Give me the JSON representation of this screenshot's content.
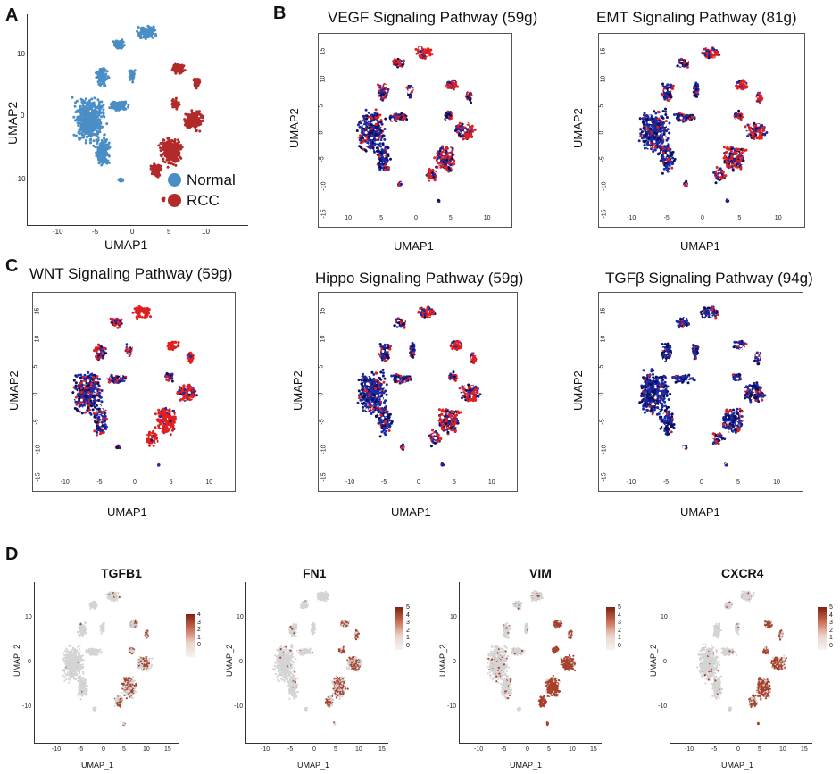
{
  "panels": {
    "A": {
      "label": "A",
      "xlabel": "UMAP1",
      "ylabel": "UMAP2",
      "xticks": [
        "-10",
        "-5",
        "0",
        "5",
        "10"
      ],
      "yticks": [
        "10",
        "0",
        "-10"
      ],
      "legend": [
        {
          "name": "Normal",
          "color": "#4a8ec6"
        },
        {
          "name": "RCC",
          "color": "#b22a2a"
        }
      ]
    },
    "B": {
      "label": "B",
      "plots": [
        {
          "title": "VEGF Signaling Pathway (59g)",
          "xlabel": "UMAP1",
          "ylabel": "UMAP2",
          "xticks": [
            "10",
            "5",
            "0",
            "5",
            "10"
          ],
          "yticks": [
            "15",
            "10",
            "5",
            "0",
            "-5",
            "-10",
            "-15"
          ]
        },
        {
          "title": "EMT Signaling Pathway (81g)",
          "xlabel": "UMAP1",
          "ylabel": "UMAP2",
          "xticks": [
            "-10",
            "-5",
            "0",
            "5",
            "10"
          ],
          "yticks": [
            "15",
            "10",
            "5",
            "0",
            "-5",
            "-10",
            "-15"
          ]
        }
      ]
    },
    "C": {
      "label": "C",
      "plots": [
        {
          "title": "WNT Signaling Pathway (59g)",
          "xlabel": "UMAP1",
          "ylabel": "UMAP2",
          "xticks": [
            "-10",
            "-5",
            "0",
            "5",
            "10"
          ],
          "yticks": [
            "15",
            "10",
            "5",
            "0",
            "-5",
            "-10",
            "-15"
          ]
        },
        {
          "title": "Hippo Signaling Pathway (59g)",
          "xlabel": "UMAP1",
          "ylabel": "UMAP2",
          "xticks": [
            "-10",
            "-5",
            "0",
            "5",
            "10"
          ],
          "yticks": [
            "15",
            "10",
            "5",
            "0",
            "-5",
            "-10",
            "-15"
          ]
        },
        {
          "title": "TGFβ Signaling Pathway (94g)",
          "xlabel": "UMAP1",
          "ylabel": "UMAP2",
          "xticks": [
            "-10",
            "-5",
            "0",
            "5",
            "10"
          ],
          "yticks": [
            "15",
            "10",
            "5",
            "0",
            "-5",
            "-10",
            "-15"
          ]
        }
      ]
    },
    "D": {
      "label": "D",
      "genes": [
        {
          "title": "TGFB1",
          "scale": [
            "4",
            "3",
            "2",
            "1",
            "0"
          ]
        },
        {
          "title": "FN1",
          "scale": [
            "5",
            "4",
            "3",
            "2",
            "1",
            "0"
          ]
        },
        {
          "title": "VIM",
          "scale": [
            "5",
            "4",
            "3",
            "2",
            "1",
            "0"
          ]
        },
        {
          "title": "CXCR4",
          "scale": [
            "5",
            "4",
            "3",
            "2",
            "1",
            "0"
          ]
        }
      ],
      "xlabel": "UMAP_1",
      "ylabel": "UMAP_2",
      "xticks": [
        "-10",
        "-5",
        "0",
        "5",
        "10",
        "15"
      ],
      "yticks": [
        "10",
        "0",
        "-10"
      ]
    }
  },
  "colors": {
    "normal": "#4a8ec6",
    "rcc": "#b22a2a",
    "lowscore": "#1a2aa8",
    "highscore": "#e02020",
    "grey": "#d4d4d4",
    "expr": "#a8412a"
  }
}
